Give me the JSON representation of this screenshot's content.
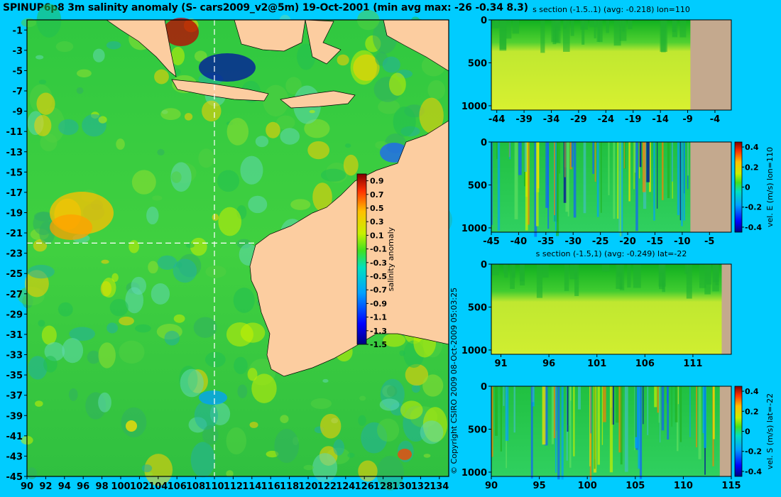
{
  "title": "SPINUP6p8 3m salinity anomaly (S- cars2009_v2@5m) 19-Oct-2001 (min avg max: -26 -0.34 8.3)",
  "copyright": "© Copyright CSIRO 2009   08-Oct-2009 05:03:25",
  "colors": {
    "background": "#00ccff",
    "land": "#fccda0",
    "section_land": "#c4a98e",
    "guide_line": "#ffffff"
  },
  "chart_data": [
    {
      "id": "map",
      "type": "heatmap",
      "title": "",
      "x_ticks": [
        "90",
        "92",
        "94",
        "96",
        "98",
        "100",
        "102",
        "104",
        "106",
        "108",
        "110",
        "112",
        "114",
        "116",
        "118",
        "120",
        "122",
        "124",
        "126",
        "128",
        "130",
        "132",
        "134"
      ],
      "y_ticks": [
        "-1",
        "-3",
        "-5",
        "-7",
        "-9",
        "-11",
        "-13",
        "-15",
        "-17",
        "-19",
        "-21",
        "-23",
        "-25",
        "-27",
        "-29",
        "-31",
        "-33",
        "-35",
        "-37",
        "-39",
        "-41",
        "-43",
        "-45"
      ],
      "xlim": [
        90,
        135
      ],
      "ylim": [
        -45,
        0
      ],
      "guide_lon": 110,
      "guide_lat": -22,
      "colorbar_label": "salinity anomaly",
      "colorbar_ticks": [
        "0.9",
        "0.7",
        "0.5",
        "0.3",
        "0.1",
        "-0.1",
        "-0.3",
        "-0.5",
        "-0.7",
        "-0.9",
        "-1.1",
        "-1.3",
        "-1.5"
      ],
      "colorbar_range": [
        -1.5,
        1.0
      ]
    },
    {
      "id": "section-s-lon",
      "type": "heatmap",
      "title": "s section (-1.5..1) (avg: -0.218) lon=110",
      "x_ticks": [
        "-44",
        "-39",
        "-34",
        "-29",
        "-24",
        "-19",
        "-14",
        "-9",
        "-4"
      ],
      "y_ticks": [
        "0",
        "500",
        "1000"
      ],
      "xlim": [
        -45,
        -1
      ],
      "ylim": [
        1050,
        0
      ]
    },
    {
      "id": "section-u-lon",
      "type": "heatmap",
      "title": "",
      "x_ticks": [
        "-45",
        "-40",
        "-35",
        "-30",
        "-25",
        "-20",
        "-15",
        "-10",
        "-5"
      ],
      "y_ticks": [
        "0",
        "500",
        "1000"
      ],
      "xlim": [
        -45,
        -1
      ],
      "ylim": [
        1050,
        0
      ],
      "colorbar_label": "vel. E (m/s) lon=110",
      "colorbar_ticks": [
        "0.4",
        "0.2",
        "0",
        "-0.2",
        "-0.4"
      ],
      "colorbar_range": [
        -0.45,
        0.45
      ]
    },
    {
      "id": "section-s-lat",
      "type": "heatmap",
      "title": "s section (-1.5,1) (avg: -0.249) lat=-22",
      "x_ticks": [
        "91",
        "96",
        "101",
        "106",
        "111"
      ],
      "y_ticks": [
        "0",
        "500",
        "1000"
      ],
      "xlim": [
        90,
        115
      ],
      "ylim": [
        1050,
        0
      ]
    },
    {
      "id": "section-v-lat",
      "type": "heatmap",
      "title": "",
      "x_ticks": [
        "90",
        "95",
        "100",
        "105",
        "110",
        "115"
      ],
      "y_ticks": [
        "0",
        "500",
        "1000"
      ],
      "xlim": [
        90,
        115
      ],
      "ylim": [
        1050,
        0
      ],
      "colorbar_label": "vel. S (m/s) lat=-22",
      "colorbar_ticks": [
        "0.4",
        "0.2",
        "0",
        "-0.2",
        "-0.4"
      ],
      "colorbar_range": [
        -0.45,
        0.45
      ]
    }
  ]
}
